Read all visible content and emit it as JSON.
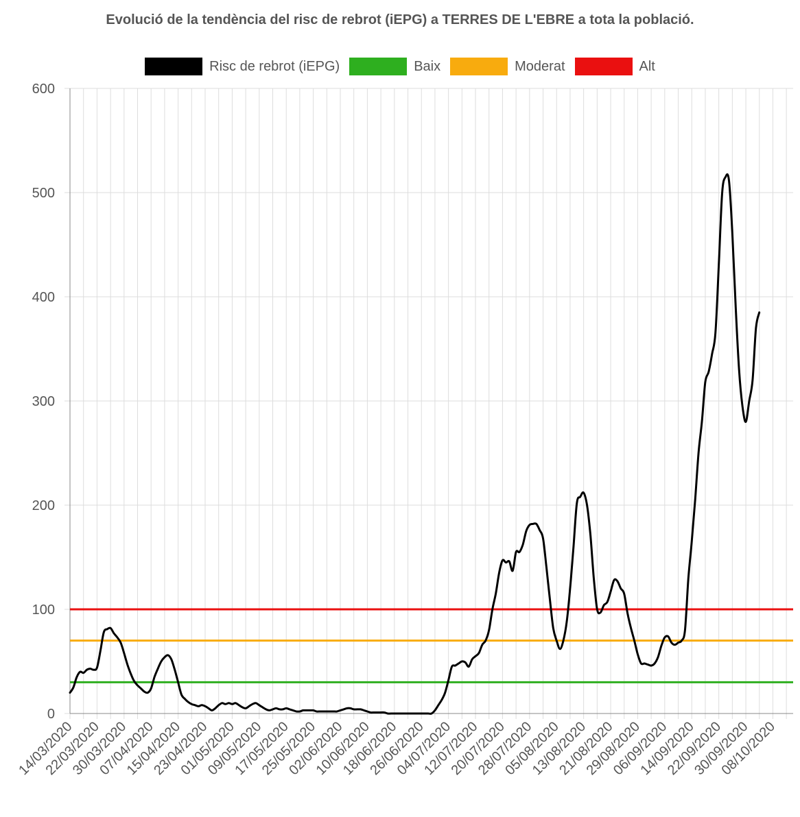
{
  "chart_data": {
    "type": "line",
    "title": "Evolució de la tendència del risc de rebrot (iEPG) a TERRES DE L'EBRE a tota la població.",
    "xlabel": "",
    "ylabel": "",
    "ylim": [
      0,
      600
    ],
    "yticks": [
      0,
      100,
      200,
      300,
      400,
      500,
      600
    ],
    "x_start": "2020-03-14",
    "x_end": "2020-10-14",
    "x_tick_labels": [
      "14/03/2020",
      "22/03/2020",
      "30/03/2020",
      "07/04/2020",
      "15/04/2020",
      "23/04/2020",
      "01/05/2020",
      "09/05/2020",
      "17/05/2020",
      "25/05/2020",
      "02/06/2020",
      "10/06/2020",
      "18/06/2020",
      "26/06/2020",
      "04/07/2020",
      "12/07/2020",
      "20/07/2020",
      "28/07/2020",
      "05/08/2020",
      "13/08/2020",
      "21/08/2020",
      "29/08/2020",
      "06/09/2020",
      "14/09/2020",
      "22/09/2020",
      "30/09/2020",
      "08/10/2020"
    ],
    "grid": true,
    "legend_position": "top",
    "series": [
      {
        "name": "Risc de rebrot (iEPG)",
        "color": "#000000",
        "points": [
          [
            "2020-03-14",
            20
          ],
          [
            "2020-03-15",
            25
          ],
          [
            "2020-03-16",
            35
          ],
          [
            "2020-03-17",
            40
          ],
          [
            "2020-03-18",
            39
          ],
          [
            "2020-03-19",
            42
          ],
          [
            "2020-03-20",
            43
          ],
          [
            "2020-03-21",
            42
          ],
          [
            "2020-03-22",
            44
          ],
          [
            "2020-03-23",
            60
          ],
          [
            "2020-03-24",
            78
          ],
          [
            "2020-03-25",
            81
          ],
          [
            "2020-03-26",
            82
          ],
          [
            "2020-03-27",
            77
          ],
          [
            "2020-03-28",
            73
          ],
          [
            "2020-03-29",
            68
          ],
          [
            "2020-03-30",
            58
          ],
          [
            "2020-03-31",
            47
          ],
          [
            "2020-04-01",
            38
          ],
          [
            "2020-04-02",
            31
          ],
          [
            "2020-04-03",
            27
          ],
          [
            "2020-04-04",
            24
          ],
          [
            "2020-04-05",
            21
          ],
          [
            "2020-04-06",
            20
          ],
          [
            "2020-04-07",
            24
          ],
          [
            "2020-04-08",
            35
          ],
          [
            "2020-04-09",
            43
          ],
          [
            "2020-04-10",
            50
          ],
          [
            "2020-04-11",
            54
          ],
          [
            "2020-04-12",
            56
          ],
          [
            "2020-04-13",
            52
          ],
          [
            "2020-04-14",
            42
          ],
          [
            "2020-04-15",
            30
          ],
          [
            "2020-04-16",
            18
          ],
          [
            "2020-04-17",
            14
          ],
          [
            "2020-04-18",
            11
          ],
          [
            "2020-04-19",
            9
          ],
          [
            "2020-04-20",
            8
          ],
          [
            "2020-04-21",
            7
          ],
          [
            "2020-04-22",
            8
          ],
          [
            "2020-04-23",
            7
          ],
          [
            "2020-04-24",
            5
          ],
          [
            "2020-04-25",
            3
          ],
          [
            "2020-04-26",
            5
          ],
          [
            "2020-04-27",
            8
          ],
          [
            "2020-04-28",
            10
          ],
          [
            "2020-04-29",
            9
          ],
          [
            "2020-04-30",
            10
          ],
          [
            "2020-05-01",
            9
          ],
          [
            "2020-05-02",
            10
          ],
          [
            "2020-05-03",
            8
          ],
          [
            "2020-05-04",
            6
          ],
          [
            "2020-05-05",
            5
          ],
          [
            "2020-05-06",
            7
          ],
          [
            "2020-05-07",
            9
          ],
          [
            "2020-05-08",
            10
          ],
          [
            "2020-05-09",
            8
          ],
          [
            "2020-05-10",
            6
          ],
          [
            "2020-05-11",
            4
          ],
          [
            "2020-05-12",
            3
          ],
          [
            "2020-05-13",
            4
          ],
          [
            "2020-05-14",
            5
          ],
          [
            "2020-05-15",
            4
          ],
          [
            "2020-05-16",
            4
          ],
          [
            "2020-05-17",
            5
          ],
          [
            "2020-05-18",
            4
          ],
          [
            "2020-05-19",
            3
          ],
          [
            "2020-05-20",
            2
          ],
          [
            "2020-05-21",
            2
          ],
          [
            "2020-05-22",
            3
          ],
          [
            "2020-05-23",
            3
          ],
          [
            "2020-05-24",
            3
          ],
          [
            "2020-05-25",
            3
          ],
          [
            "2020-05-26",
            2
          ],
          [
            "2020-05-27",
            2
          ],
          [
            "2020-05-28",
            2
          ],
          [
            "2020-05-29",
            2
          ],
          [
            "2020-05-30",
            2
          ],
          [
            "2020-05-31",
            2
          ],
          [
            "2020-06-01",
            2
          ],
          [
            "2020-06-02",
            3
          ],
          [
            "2020-06-03",
            4
          ],
          [
            "2020-06-04",
            5
          ],
          [
            "2020-06-05",
            5
          ],
          [
            "2020-06-06",
            4
          ],
          [
            "2020-06-07",
            4
          ],
          [
            "2020-06-08",
            4
          ],
          [
            "2020-06-09",
            3
          ],
          [
            "2020-06-10",
            2
          ],
          [
            "2020-06-11",
            1
          ],
          [
            "2020-06-12",
            1
          ],
          [
            "2020-06-13",
            1
          ],
          [
            "2020-06-14",
            1
          ],
          [
            "2020-06-15",
            1
          ],
          [
            "2020-06-16",
            0
          ],
          [
            "2020-06-17",
            0
          ],
          [
            "2020-06-18",
            0
          ],
          [
            "2020-06-19",
            0
          ],
          [
            "2020-06-20",
            0
          ],
          [
            "2020-06-21",
            0
          ],
          [
            "2020-06-22",
            0
          ],
          [
            "2020-06-23",
            0
          ],
          [
            "2020-06-24",
            0
          ],
          [
            "2020-06-25",
            0
          ],
          [
            "2020-06-26",
            0
          ],
          [
            "2020-06-27",
            0
          ],
          [
            "2020-06-28",
            0
          ],
          [
            "2020-06-29",
            0
          ],
          [
            "2020-06-30",
            3
          ],
          [
            "2020-07-01",
            8
          ],
          [
            "2020-07-02",
            13
          ],
          [
            "2020-07-03",
            20
          ],
          [
            "2020-07-04",
            32
          ],
          [
            "2020-07-05",
            45
          ],
          [
            "2020-07-06",
            46
          ],
          [
            "2020-07-07",
            48
          ],
          [
            "2020-07-08",
            50
          ],
          [
            "2020-07-09",
            49
          ],
          [
            "2020-07-10",
            45
          ],
          [
            "2020-07-11",
            52
          ],
          [
            "2020-07-12",
            55
          ],
          [
            "2020-07-13",
            58
          ],
          [
            "2020-07-14",
            66
          ],
          [
            "2020-07-15",
            70
          ],
          [
            "2020-07-16",
            80
          ],
          [
            "2020-07-17",
            100
          ],
          [
            "2020-07-18",
            115
          ],
          [
            "2020-07-19",
            135
          ],
          [
            "2020-07-20",
            147
          ],
          [
            "2020-07-21",
            145
          ],
          [
            "2020-07-22",
            146
          ],
          [
            "2020-07-23",
            137
          ],
          [
            "2020-07-24",
            155
          ],
          [
            "2020-07-25",
            155
          ],
          [
            "2020-07-26",
            162
          ],
          [
            "2020-07-27",
            175
          ],
          [
            "2020-07-28",
            181
          ],
          [
            "2020-07-29",
            182
          ],
          [
            "2020-07-30",
            182
          ],
          [
            "2020-07-31",
            176
          ],
          [
            "2020-08-01",
            168
          ],
          [
            "2020-08-02",
            140
          ],
          [
            "2020-08-03",
            110
          ],
          [
            "2020-08-04",
            82
          ],
          [
            "2020-08-05",
            70
          ],
          [
            "2020-08-06",
            62
          ],
          [
            "2020-08-07",
            70
          ],
          [
            "2020-08-08",
            88
          ],
          [
            "2020-08-09",
            120
          ],
          [
            "2020-08-10",
            160
          ],
          [
            "2020-08-11",
            202
          ],
          [
            "2020-08-12",
            208
          ],
          [
            "2020-08-13",
            212
          ],
          [
            "2020-08-14",
            200
          ],
          [
            "2020-08-15",
            172
          ],
          [
            "2020-08-16",
            130
          ],
          [
            "2020-08-17",
            100
          ],
          [
            "2020-08-18",
            97
          ],
          [
            "2020-08-19",
            104
          ],
          [
            "2020-08-20",
            107
          ],
          [
            "2020-08-21",
            117
          ],
          [
            "2020-08-22",
            128
          ],
          [
            "2020-08-23",
            127
          ],
          [
            "2020-08-24",
            120
          ],
          [
            "2020-08-25",
            115
          ],
          [
            "2020-08-26",
            96
          ],
          [
            "2020-08-27",
            82
          ],
          [
            "2020-08-28",
            70
          ],
          [
            "2020-08-29",
            57
          ],
          [
            "2020-08-30",
            48
          ],
          [
            "2020-08-31",
            48
          ],
          [
            "2020-09-01",
            47
          ],
          [
            "2020-09-02",
            46
          ],
          [
            "2020-09-03",
            48
          ],
          [
            "2020-09-04",
            54
          ],
          [
            "2020-09-05",
            65
          ],
          [
            "2020-09-06",
            73
          ],
          [
            "2020-09-07",
            74
          ],
          [
            "2020-09-08",
            68
          ],
          [
            "2020-09-09",
            66
          ],
          [
            "2020-09-10",
            68
          ],
          [
            "2020-09-11",
            70
          ],
          [
            "2020-09-12",
            80
          ],
          [
            "2020-09-13",
            130
          ],
          [
            "2020-09-14",
            165
          ],
          [
            "2020-09-15",
            205
          ],
          [
            "2020-09-16",
            250
          ],
          [
            "2020-09-17",
            280
          ],
          [
            "2020-09-18",
            318
          ],
          [
            "2020-09-19",
            328
          ],
          [
            "2020-09-20",
            345
          ],
          [
            "2020-09-21",
            365
          ],
          [
            "2020-09-22",
            430
          ],
          [
            "2020-09-23",
            500
          ],
          [
            "2020-09-24",
            515
          ],
          [
            "2020-09-25",
            512
          ],
          [
            "2020-09-26",
            462
          ],
          [
            "2020-09-27",
            390
          ],
          [
            "2020-09-28",
            330
          ],
          [
            "2020-09-29",
            295
          ],
          [
            "2020-09-30",
            280
          ],
          [
            "2020-10-01",
            300
          ],
          [
            "2020-10-02",
            320
          ],
          [
            "2020-10-03",
            370
          ],
          [
            "2020-10-04",
            385
          ]
        ]
      },
      {
        "name": "Baix",
        "color": "#2eaf1f",
        "constant": 30
      },
      {
        "name": "Moderat",
        "color": "#f8ab0e",
        "constant": 70
      },
      {
        "name": "Alt",
        "color": "#ea1010",
        "constant": 100
      }
    ]
  }
}
